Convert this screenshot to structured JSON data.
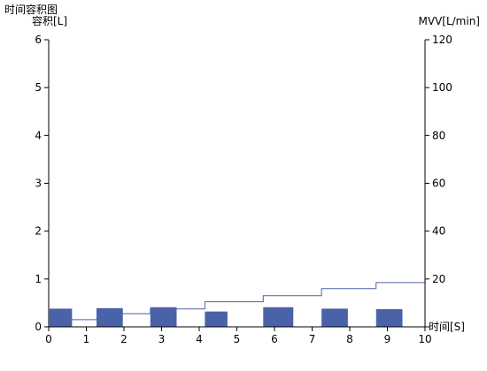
{
  "title": "时间容积图",
  "chart_data": {
    "type": "bar+line",
    "title": "时间容积图",
    "xlabel": "时间[S]",
    "ylabel": "容积[L]",
    "y2label": "MVV[L/min]",
    "xlim": [
      0,
      10
    ],
    "ylim": [
      0,
      6
    ],
    "y2lim": [
      0,
      120
    ],
    "x_ticks": [
      "0",
      "1",
      "2",
      "3",
      "4",
      "5",
      "6",
      "7",
      "8",
      "9",
      "10"
    ],
    "y_ticks": [
      "0",
      "1",
      "2",
      "3",
      "4",
      "5",
      "6"
    ],
    "y2_ticks": [
      "0",
      "20",
      "40",
      "60",
      "80",
      "100",
      "120"
    ],
    "grid": false,
    "bar_color": "#4a62a8",
    "line_color": "#4a62a8",
    "bars": [
      {
        "x0": 0.02,
        "x1": 0.62,
        "value": 0.38
      },
      {
        "x0": 1.27,
        "x1": 1.97,
        "value": 0.39
      },
      {
        "x0": 2.7,
        "x1": 3.4,
        "value": 0.41
      },
      {
        "x0": 4.15,
        "x1": 4.75,
        "value": 0.32
      },
      {
        "x0": 5.7,
        "x1": 6.5,
        "value": 0.41
      },
      {
        "x0": 7.25,
        "x1": 7.95,
        "value": 0.38
      },
      {
        "x0": 8.7,
        "x1": 9.4,
        "value": 0.37
      }
    ],
    "mvv_line": [
      {
        "x": 0.6,
        "y": 3
      },
      {
        "x": 1.95,
        "y": 3
      },
      {
        "x": 1.95,
        "y": 5.5
      },
      {
        "x": 2.7,
        "y": 5.5
      },
      {
        "x": 2.7,
        "y": 7.5
      },
      {
        "x": 4.15,
        "y": 7.5
      },
      {
        "x": 4.15,
        "y": 10.5
      },
      {
        "x": 5.7,
        "y": 10.5
      },
      {
        "x": 5.7,
        "y": 13
      },
      {
        "x": 7.25,
        "y": 13
      },
      {
        "x": 7.25,
        "y": 16
      },
      {
        "x": 8.7,
        "y": 16
      },
      {
        "x": 8.7,
        "y": 18.5
      },
      {
        "x": 10,
        "y": 18.5
      }
    ]
  }
}
